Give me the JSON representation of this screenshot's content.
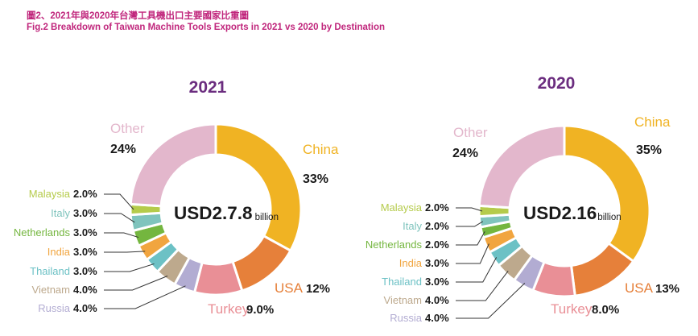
{
  "figure": {
    "title_zh": "圖2、2021年與2020年台灣工具機出口主要國家比重圖",
    "title_en": "Fig.2    Breakdown of Taiwan Machine Tools  Exports in 2021 vs 2020 by Destination"
  },
  "chart_data": [
    {
      "type": "pie",
      "title": "2021",
      "total_label": "USD2.7.8",
      "total_unit": "billion",
      "slices": [
        {
          "name": "China",
          "value": 33,
          "label": "33%",
          "color": "#f0b323"
        },
        {
          "name": "USA",
          "value": 12,
          "label": "12%",
          "color": "#e6803a"
        },
        {
          "name": "Turkey",
          "value": 9,
          "label": "9.0%",
          "color": "#e98f96"
        },
        {
          "name": "Russia",
          "value": 4,
          "label": "4.0%",
          "color": "#b2acd2"
        },
        {
          "name": "Vietnam",
          "value": 4,
          "label": "4.0%",
          "color": "#bda98d"
        },
        {
          "name": "Thailand",
          "value": 3,
          "label": "3.0%",
          "color": "#6cc1c5"
        },
        {
          "name": "India",
          "value": 3,
          "label": "3.0%",
          "color": "#f1a53f"
        },
        {
          "name": "Netherlands",
          "value": 3,
          "label": "3.0%",
          "color": "#74b63f"
        },
        {
          "name": "Italy",
          "value": 3,
          "label": "3.0%",
          "color": "#7fc4bd"
        },
        {
          "name": "Malaysia",
          "value": 2,
          "label": "2.0%",
          "color": "#b5cb4b"
        },
        {
          "name": "Other",
          "value": 24,
          "label": "24%",
          "color": "#e3b7cc"
        }
      ]
    },
    {
      "type": "pie",
      "title": "2020",
      "total_label": "USD2.16",
      "total_unit": "billion",
      "slices": [
        {
          "name": "China",
          "value": 35,
          "label": "35%",
          "color": "#f0b323"
        },
        {
          "name": "USA",
          "value": 13,
          "label": "13%",
          "color": "#e6803a"
        },
        {
          "name": "Turkey",
          "value": 8,
          "label": "8.0%",
          "color": "#e98f96"
        },
        {
          "name": "Russia",
          "value": 4,
          "label": "4.0%",
          "color": "#b2acd2"
        },
        {
          "name": "Vietnam",
          "value": 4,
          "label": "4.0%",
          "color": "#bda98d"
        },
        {
          "name": "Thailand",
          "value": 3,
          "label": "3.0%",
          "color": "#6cc1c5"
        },
        {
          "name": "India",
          "value": 3,
          "label": "3.0%",
          "color": "#f1a53f"
        },
        {
          "name": "Netherlands",
          "value": 2,
          "label": "2.0%",
          "color": "#74b63f"
        },
        {
          "name": "Italy",
          "value": 2,
          "label": "2.0%",
          "color": "#7fc4bd"
        },
        {
          "name": "Malaysia",
          "value": 2,
          "label": "2.0%",
          "color": "#b5cb4b"
        },
        {
          "name": "Other",
          "value": 24,
          "label": "24%",
          "color": "#e3b7cc"
        }
      ]
    }
  ]
}
